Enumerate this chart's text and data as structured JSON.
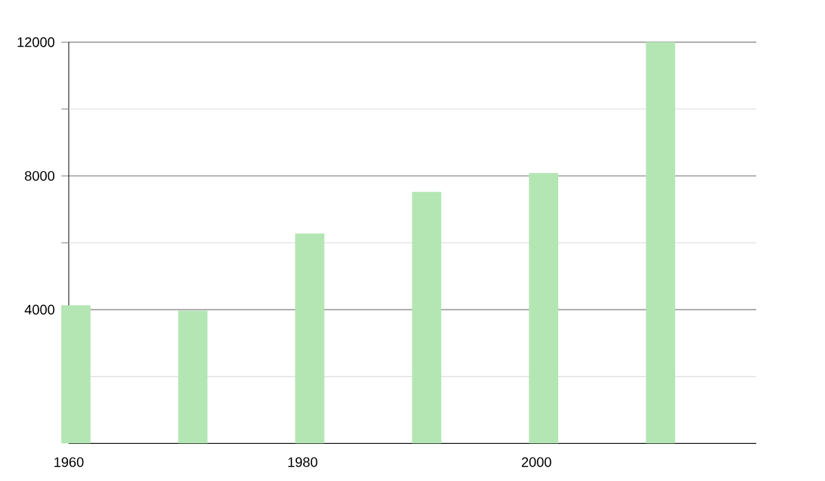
{
  "chart_data": {
    "type": "bar",
    "x": [
      1960,
      1970,
      1980,
      1990,
      2000,
      2010
    ],
    "values": [
      4130,
      3970,
      6280,
      7520,
      8090,
      12000
    ],
    "color": "#b3e6b3",
    "xlim": [
      1960,
      2018.8
    ],
    "xticks": [
      1960,
      1980,
      2000
    ],
    "ylim": [
      0,
      12000
    ],
    "yticks": [
      {
        "value": 2000,
        "label": null
      },
      4000,
      {
        "value": 6000,
        "label": null
      },
      8000,
      {
        "value": 10000,
        "label": null
      },
      12000
    ],
    "grid": "y"
  }
}
